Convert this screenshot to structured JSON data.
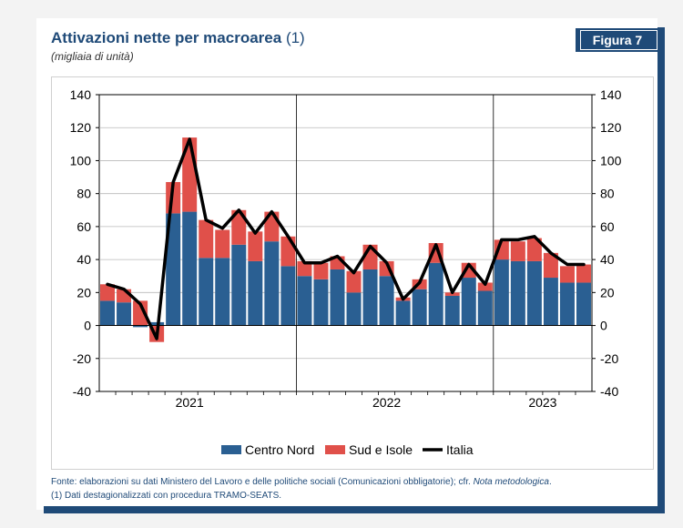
{
  "header": {
    "title": "Attivazioni nette per macroarea",
    "title_note": "(1)",
    "subtitle": "(migliaia di unità)",
    "badge": "Figura 7"
  },
  "footer": {
    "source_prefix": "Fonte: elaborazioni su dati Ministero del Lavoro e delle politiche sociali (Comunicazioni obbligatorie); cfr. ",
    "source_italic": "Nota metodologica",
    "source_suffix": ".",
    "note": "(1) Dati destagionalizzati con procedura TRAMO-SEATS."
  },
  "colors": {
    "brand": "#1f4a78",
    "centro_nord": "#2a5f92",
    "sud_isole": "#e0504a",
    "italia": "#000000"
  },
  "chart_data": {
    "type": "bar",
    "stacked": true,
    "ylim": [
      -40,
      140
    ],
    "yticks": [
      -40,
      -20,
      0,
      20,
      40,
      60,
      80,
      100,
      120,
      140
    ],
    "year_labels": [
      {
        "label": "2021",
        "month_index": 5.5
      },
      {
        "label": "2022",
        "month_index": 17.5
      },
      {
        "label": "2023",
        "month_index": 27
      }
    ],
    "year_separators_after_month": [
      12,
      24
    ],
    "grid": true,
    "legend_position": "bottom",
    "series": [
      {
        "name": "Centro Nord",
        "type": "bar",
        "color": "#2a5f92",
        "values": [
          15,
          14,
          -1,
          2,
          68,
          69,
          41,
          41,
          49,
          39,
          51,
          36,
          30,
          28,
          34,
          20,
          34,
          30,
          15,
          22,
          38,
          18,
          29,
          21,
          40,
          39,
          39,
          29,
          26,
          26
        ]
      },
      {
        "name": "Sud e Isole",
        "type": "bar",
        "color": "#e0504a",
        "values": [
          10,
          8,
          15,
          -10,
          19,
          45,
          23,
          17,
          21,
          18,
          18,
          18,
          9,
          10,
          8,
          13,
          15,
          9,
          2,
          6,
          12,
          2,
          9,
          5,
          12,
          12,
          14,
          15,
          10,
          11
        ]
      },
      {
        "name": "Italia",
        "type": "line",
        "color": "#000000",
        "values": [
          25,
          22,
          13,
          -8,
          87,
          113,
          64,
          59,
          70,
          56,
          69,
          54,
          38,
          38,
          42,
          32,
          48,
          38,
          16,
          26,
          49,
          20,
          37,
          25,
          52,
          52,
          54,
          44,
          37,
          37
        ]
      }
    ]
  }
}
